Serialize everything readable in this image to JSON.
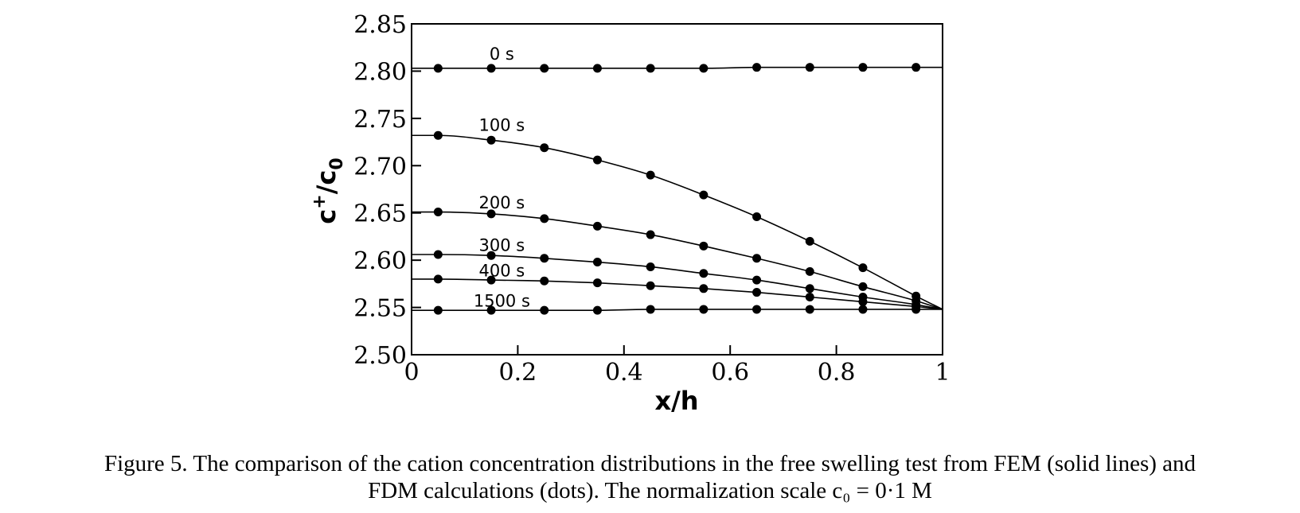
{
  "chart_data": {
    "type": "line",
    "xlabel": "x/h",
    "ylabel": "c+/c0",
    "xlim": [
      0,
      1
    ],
    "ylim": [
      2.5,
      2.85
    ],
    "xticks": [
      "0",
      "0.2",
      "0.4",
      "0.6",
      "0.8",
      "1"
    ],
    "xtick_values": [
      0,
      0.2,
      0.4,
      0.6,
      0.8,
      1
    ],
    "yticks": [
      "2.50",
      "2.55",
      "2.60",
      "2.65",
      "2.70",
      "2.75",
      "2.80",
      "2.85"
    ],
    "ytick_values": [
      2.5,
      2.55,
      2.6,
      2.65,
      2.7,
      2.75,
      2.8,
      2.85
    ],
    "grid": false,
    "line_color": "#000000",
    "dot_x": [
      0.05,
      0.15,
      0.25,
      0.35,
      0.45,
      0.55,
      0.65,
      0.75,
      0.85,
      0.95
    ],
    "series": [
      {
        "name": "0 s",
        "values": [
          2.803,
          2.803,
          2.803,
          2.803,
          2.803,
          2.803,
          2.804,
          2.804,
          2.804,
          2.804
        ],
        "line_end": 2.804
      },
      {
        "name": "100 s",
        "values": [
          2.732,
          2.727,
          2.719,
          2.706,
          2.69,
          2.669,
          2.646,
          2.62,
          2.592,
          2.562
        ],
        "line_end": 2.548
      },
      {
        "name": "200 s",
        "values": [
          2.651,
          2.649,
          2.644,
          2.636,
          2.627,
          2.615,
          2.602,
          2.588,
          2.572,
          2.557
        ],
        "line_end": 2.548
      },
      {
        "name": "300 s",
        "values": [
          2.606,
          2.605,
          2.602,
          2.598,
          2.593,
          2.586,
          2.579,
          2.57,
          2.561,
          2.553
        ],
        "line_end": 2.548
      },
      {
        "name": "400 s",
        "values": [
          2.58,
          2.579,
          2.578,
          2.576,
          2.573,
          2.57,
          2.566,
          2.561,
          2.556,
          2.551
        ],
        "line_end": 2.548
      },
      {
        "name": "1500 s",
        "values": [
          2.547,
          2.547,
          2.547,
          2.547,
          2.548,
          2.548,
          2.548,
          2.548,
          2.548,
          2.548
        ],
        "line_end": 2.548
      }
    ]
  },
  "caption": {
    "line1": "Figure 5.  The comparison of the cation concentration distributions in the free swelling test from FEM (solid lines) and",
    "line2": "FDM calculations (dots). The normalization scale c₀ = 0·1 M"
  }
}
